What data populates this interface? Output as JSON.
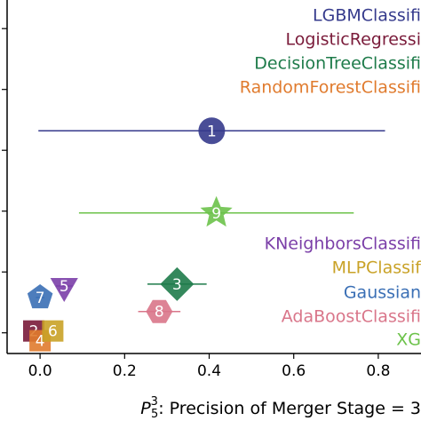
{
  "chart_data": {
    "type": "scatter",
    "xlabel": {
      "symbol": "P",
      "sub": "5",
      "sup": "3",
      "text": ": Precision of Merger Stage = 3"
    },
    "xlim": [
      -0.078,
      0.9
    ],
    "xticks": [
      {
        "value": 0,
        "label": "0.0"
      },
      {
        "value": 0.2,
        "label": "0.2"
      },
      {
        "value": 0.4,
        "label": "0.4"
      },
      {
        "value": 0.6,
        "label": "0.6"
      },
      {
        "value": 0.8,
        "label": "0.8"
      }
    ],
    "ylim": [
      -0.34,
      5.47
    ],
    "yticks": [
      0,
      1,
      2,
      3,
      4,
      5
    ],
    "series": [
      {
        "name": "LGBMClassifi",
        "color": "#353a8c",
        "marker": "circle",
        "label": "1",
        "x": 0.406,
        "y": 3.32,
        "xerr": 0.41
      },
      {
        "name": "LogisticRegressi",
        "color": "#7a1b3a",
        "marker": "square",
        "label": "2",
        "x": -0.015,
        "y": 0.03,
        "xerr": 0.01
      },
      {
        "name": "DecisionTreeClassifi",
        "color": "#1e7b4a",
        "marker": "diamond",
        "label": "3",
        "x": 0.324,
        "y": 0.8,
        "xerr": 0.07
      },
      {
        "name": "RandomForestClassifi",
        "color": "#e07b2e",
        "marker": "square",
        "label": "4",
        "x": 0.0,
        "y": -0.13,
        "xerr": 0.01
      },
      {
        "name": "KNeighborsClassifi",
        "color": "#7b3fa8",
        "marker": "triangle-down",
        "label": "5",
        "x": 0.057,
        "y": 0.77,
        "xerr": 0.02
      },
      {
        "name": "MLPClassif",
        "color": "#c9a227",
        "marker": "square",
        "label": "6",
        "x": 0.03,
        "y": 0.03,
        "xerr": 0.01
      },
      {
        "name": "Gaussian",
        "color": "#3a6fb5",
        "marker": "pentagon",
        "label": "7",
        "x": 0.0,
        "y": 0.58,
        "xerr": 0.01
      },
      {
        "name": "AdaBoostClassifi",
        "color": "#d9768a",
        "marker": "hexagon",
        "label": "8",
        "x": 0.282,
        "y": 0.35,
        "xerr": 0.05
      },
      {
        "name": "XG",
        "color": "#6cc24a",
        "marker": "star",
        "label": "9",
        "x": 0.417,
        "y": 1.97,
        "xerr": 0.325
      }
    ]
  }
}
